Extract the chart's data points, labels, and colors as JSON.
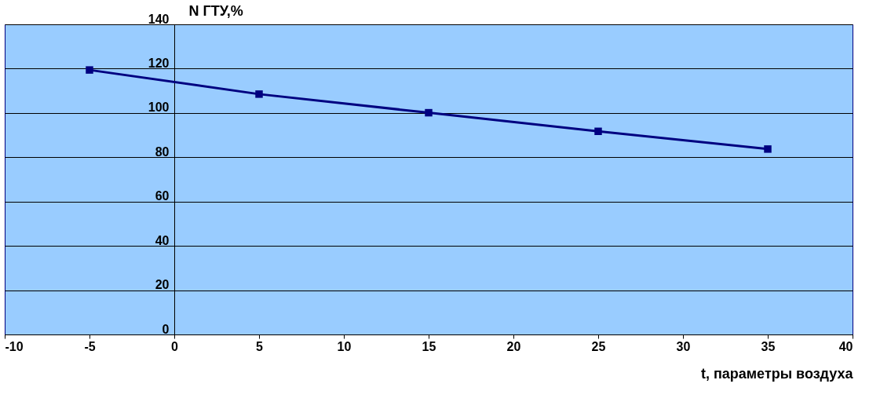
{
  "chart_data": {
    "type": "line",
    "xlabel": "t, параметры воздуха",
    "ylabel": "N ГТУ,%",
    "x": [
      -5,
      5,
      15,
      25,
      35
    ],
    "series": [
      {
        "color": "#000080",
        "values": [
          119.4,
          108.5,
          100.1,
          91.7,
          83.7
        ]
      }
    ],
    "xlim": [
      -10,
      40
    ],
    "xticks": [
      -10,
      -5,
      0,
      5,
      10,
      15,
      20,
      25,
      30,
      35,
      40
    ],
    "ylim": [
      0,
      140
    ],
    "yticks": [
      0,
      20,
      40,
      60,
      80,
      100,
      120,
      140
    ],
    "grid": "y",
    "marker": "square",
    "line_style": "solid",
    "legend": false
  }
}
